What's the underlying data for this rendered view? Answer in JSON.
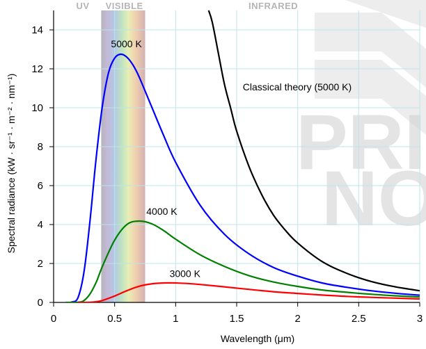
{
  "chart_data": {
    "type": "line",
    "xlabel": "Wavelength (μm)",
    "ylabel": "Spectral radiance (kW · sr⁻¹ · m⁻² · nm⁻¹)",
    "xlim": [
      0,
      3
    ],
    "ylim": [
      0,
      15
    ],
    "xticks": [
      "0",
      "0.5",
      "1",
      "1.5",
      "2",
      "2.5",
      "3"
    ],
    "yticks": [
      "0",
      "2",
      "4",
      "6",
      "8",
      "10",
      "12",
      "14"
    ],
    "grid": true,
    "bands": [
      {
        "label": "UV",
        "x": 0.24
      },
      {
        "label": "VISIBLE",
        "x": 0.58,
        "from": 0.39,
        "to": 0.75
      },
      {
        "label": "INFRARED",
        "x": 1.8
      }
    ],
    "series": [
      {
        "name": "5000 K",
        "color": "#0000ff",
        "points": [
          [
            0.1,
            0
          ],
          [
            0.15,
            0.02
          ],
          [
            0.2,
            0.25
          ],
          [
            0.25,
            1.6
          ],
          [
            0.3,
            4.3
          ],
          [
            0.35,
            7.5
          ],
          [
            0.4,
            10.1
          ],
          [
            0.45,
            11.8
          ],
          [
            0.5,
            12.55
          ],
          [
            0.55,
            12.75
          ],
          [
            0.6,
            12.6
          ],
          [
            0.65,
            12.2
          ],
          [
            0.7,
            11.6
          ],
          [
            0.8,
            10.1
          ],
          [
            0.9,
            8.6
          ],
          [
            1.0,
            7.2
          ],
          [
            1.2,
            5.0
          ],
          [
            1.4,
            3.5
          ],
          [
            1.6,
            2.5
          ],
          [
            1.8,
            1.8
          ],
          [
            2.0,
            1.35
          ],
          [
            2.2,
            1.0
          ],
          [
            2.4,
            0.78
          ],
          [
            2.6,
            0.6
          ],
          [
            2.8,
            0.47
          ],
          [
            3.0,
            0.37
          ]
        ]
      },
      {
        "name": "4000 K",
        "color": "#008000",
        "points": [
          [
            0.1,
            0
          ],
          [
            0.2,
            0.01
          ],
          [
            0.25,
            0.1
          ],
          [
            0.3,
            0.45
          ],
          [
            0.35,
            1.05
          ],
          [
            0.4,
            1.85
          ],
          [
            0.5,
            3.2
          ],
          [
            0.6,
            4.0
          ],
          [
            0.7,
            4.18
          ],
          [
            0.8,
            4.05
          ],
          [
            0.9,
            3.7
          ],
          [
            1.0,
            3.25
          ],
          [
            1.2,
            2.45
          ],
          [
            1.4,
            1.85
          ],
          [
            1.6,
            1.38
          ],
          [
            1.8,
            1.05
          ],
          [
            2.0,
            0.82
          ],
          [
            2.2,
            0.64
          ],
          [
            2.4,
            0.52
          ],
          [
            2.6,
            0.42
          ],
          [
            2.8,
            0.34
          ],
          [
            3.0,
            0.28
          ]
        ]
      },
      {
        "name": "3000 K",
        "color": "#ff0000",
        "points": [
          [
            0.2,
            0
          ],
          [
            0.3,
            0.01
          ],
          [
            0.35,
            0.04
          ],
          [
            0.4,
            0.1
          ],
          [
            0.5,
            0.33
          ],
          [
            0.6,
            0.6
          ],
          [
            0.7,
            0.83
          ],
          [
            0.8,
            0.95
          ],
          [
            0.9,
            1.0
          ],
          [
            1.0,
            1.0
          ],
          [
            1.1,
            0.97
          ],
          [
            1.2,
            0.92
          ],
          [
            1.4,
            0.8
          ],
          [
            1.6,
            0.67
          ],
          [
            1.8,
            0.55
          ],
          [
            2.0,
            0.46
          ],
          [
            2.2,
            0.38
          ],
          [
            2.4,
            0.31
          ],
          [
            2.6,
            0.26
          ],
          [
            2.8,
            0.22
          ],
          [
            3.0,
            0.18
          ]
        ]
      },
      {
        "name": "Classical theory (5000 K)",
        "color": "#000000",
        "points": [
          [
            1.27,
            15
          ],
          [
            1.3,
            14.4
          ],
          [
            1.35,
            12.8
          ],
          [
            1.4,
            11.2
          ],
          [
            1.45,
            10.0
          ],
          [
            1.5,
            8.8
          ],
          [
            1.6,
            7.0
          ],
          [
            1.7,
            5.6
          ],
          [
            1.8,
            4.5
          ],
          [
            1.9,
            3.7
          ],
          [
            2.0,
            3.05
          ],
          [
            2.2,
            2.1
          ],
          [
            2.4,
            1.5
          ],
          [
            2.6,
            1.08
          ],
          [
            2.8,
            0.8
          ],
          [
            3.0,
            0.6
          ]
        ]
      }
    ],
    "annotations": [
      {
        "text": "5000 K",
        "x": 0.47,
        "y": 13.1
      },
      {
        "text": "4000 K",
        "x": 0.76,
        "y": 4.5
      },
      {
        "text": "3000 K",
        "x": 0.95,
        "y": 1.3
      },
      {
        "text": "Classical theory (5000 K)",
        "x": 1.55,
        "y": 10.9
      }
    ],
    "watermark": [
      "PRIVATE",
      "NOTE"
    ]
  }
}
